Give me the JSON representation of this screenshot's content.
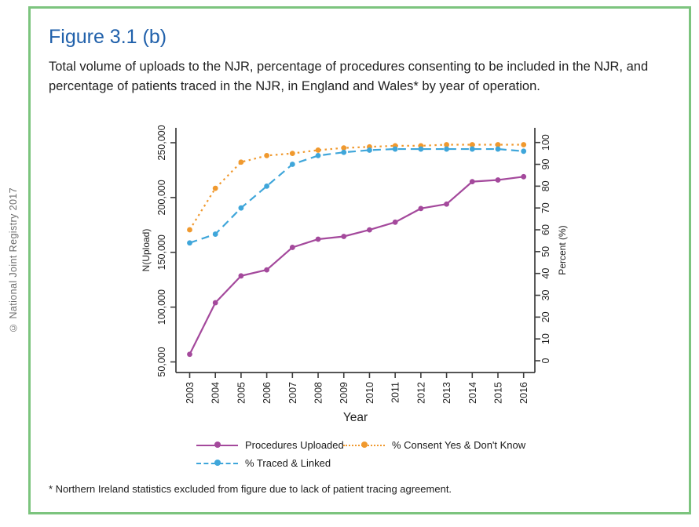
{
  "sidebar": {
    "copyright": "© National Joint Registry 2017"
  },
  "header": {
    "title": "Figure 3.1 (b)",
    "subtitle": "Total volume of uploads to the NJR, percentage of procedures consenting to be included in the NJR, and percentage of patients traced in the NJR, in England and Wales* by year of operation."
  },
  "footnote": "* Northern Ireland statistics excluded from figure due to lack of patient tracing agreement.",
  "colors": {
    "frame_green": "#7cc47e",
    "title_blue": "#2161ab",
    "axis": "#3d3d3d",
    "procedures_purple": "#a4499c",
    "consent_orange": "#f0992e",
    "traced_blue": "#3fa6da"
  },
  "chart_data": {
    "type": "line",
    "title": "",
    "xlabel": "Year",
    "x": [
      "2003",
      "2004",
      "2005",
      "2006",
      "2007",
      "2008",
      "2009",
      "2010",
      "2011",
      "2012",
      "2013",
      "2014",
      "2015",
      "2016"
    ],
    "grid": false,
    "legend_position": "bottom",
    "axis_left": {
      "title": "N(Upload)",
      "range": [
        50000,
        250000
      ],
      "tick_values": [
        50000,
        100000,
        150000,
        200000,
        250000
      ],
      "tick_labels": [
        "50,000",
        "100,000",
        "150,000",
        "200,000",
        "250,000"
      ]
    },
    "axis_right": {
      "title": "Percent (%)",
      "range": [
        0,
        100
      ],
      "tick_values": [
        0,
        10,
        20,
        30,
        40,
        50,
        60,
        70,
        80,
        90,
        100
      ],
      "tick_labels": [
        "0",
        "10",
        "20",
        "30",
        "40",
        "50",
        "60",
        "70",
        "80",
        "90",
        "100"
      ]
    },
    "series": [
      {
        "name": "Procedures Uploaded",
        "axis": "left",
        "color": "#a4499c",
        "style": "solid",
        "values": [
          57000,
          104000,
          128500,
          134000,
          154500,
          162000,
          164500,
          170500,
          177500,
          190000,
          194000,
          214500,
          216000,
          219000
        ]
      },
      {
        "name": "% Consent Yes & Don't Know",
        "axis": "right",
        "color": "#f0992e",
        "style": "dotted",
        "values": [
          60,
          79,
          91,
          94,
          95,
          96.5,
          97.5,
          98,
          98.5,
          98.5,
          99,
          99,
          99,
          99
        ]
      },
      {
        "name": "% Traced & Linked",
        "axis": "right",
        "color": "#3fa6da",
        "style": "dashed",
        "values": [
          54,
          58,
          70,
          80,
          90,
          94,
          95.5,
          96.5,
          97,
          97,
          97,
          97,
          97,
          96
        ]
      }
    ]
  }
}
